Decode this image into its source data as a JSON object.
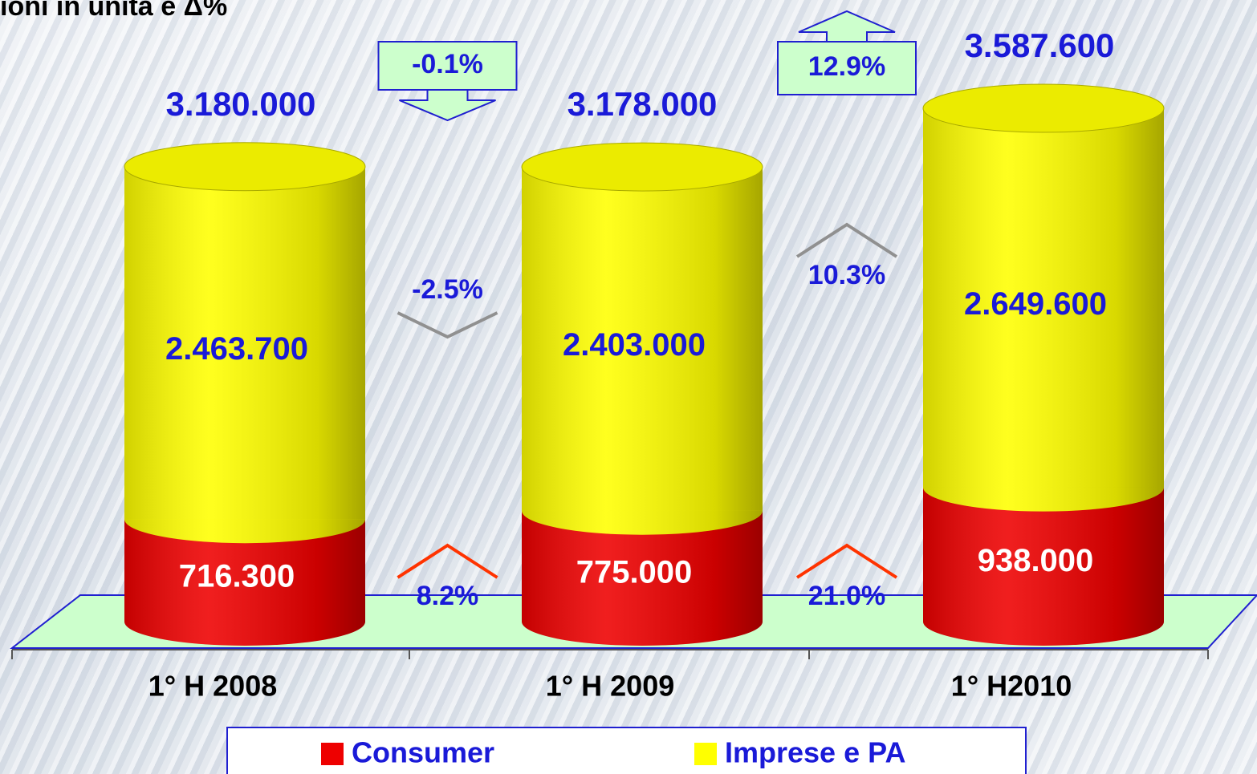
{
  "chart_data": {
    "type": "stacked_cylinder",
    "title": "ioni in unità e Δ%",
    "categories": [
      "1° H 2008",
      "1° H 2009",
      "1° H2010"
    ],
    "series": [
      {
        "name": "Consumer",
        "color": "#ee0000",
        "values": [
          716300,
          775000,
          938000
        ],
        "value_labels": [
          "716.300",
          "775.000",
          "938.000"
        ],
        "changes": [
          8.2,
          21.0
        ],
        "change_labels": [
          "8.2%",
          "21.0%"
        ]
      },
      {
        "name": "Imprese e PA",
        "color": "#ffff00",
        "values": [
          2463700,
          2403000,
          2649600
        ],
        "value_labels": [
          "2.463.700",
          "2.403.000",
          "2.649.600"
        ],
        "changes": [
          -2.5,
          10.3
        ],
        "change_labels": [
          "-2.5%",
          "10.3%"
        ]
      }
    ],
    "totals": {
      "values": [
        3180000,
        3178000,
        3587600
      ],
      "value_labels": [
        "3.180.000",
        "3.178.000",
        "3.587.600"
      ],
      "changes": [
        -0.1,
        12.9
      ],
      "change_labels": [
        "-0.1%",
        "12.9%"
      ]
    },
    "legend": "bottom"
  }
}
